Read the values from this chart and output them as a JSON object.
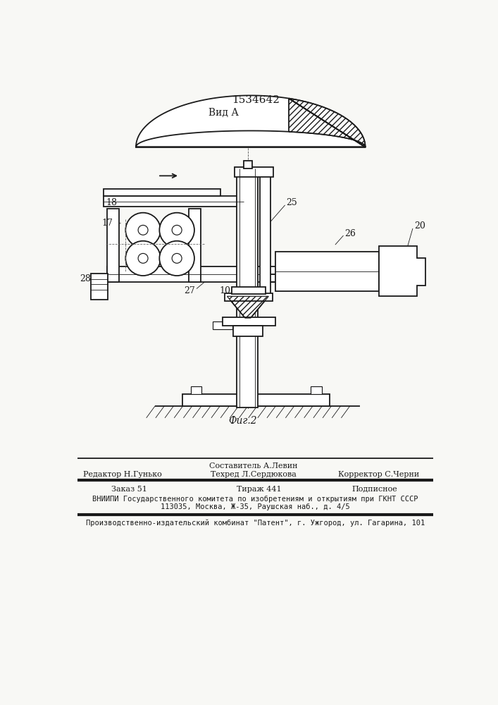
{
  "title": "1534642",
  "view_label": "Вид А",
  "fig_label": "Фиг.2",
  "bg_color": "#f8f8f5",
  "line_color": "#1a1a1a",
  "footer": {
    "line0_center": "Составитель А.Левин",
    "line1_left": "Редактор Н.Гунько",
    "line1_center": "Техред Л.Сердюкова",
    "line1_right": "Корректор С.Черни",
    "line2_left": "Заказ 51",
    "line2_center": "Тираж 441",
    "line2_right": "Подписное",
    "line3": "ВНИИПИ Государственного комитета по изобретениям и открытиям при ГКНТ СССР",
    "line4": "113035, Москва, Ж-35, Раушская наб., д. 4/5",
    "line5": "Производственно-издательский комбинат \"Патент\", г. Ужгород, ул. Гагарина, 101"
  }
}
